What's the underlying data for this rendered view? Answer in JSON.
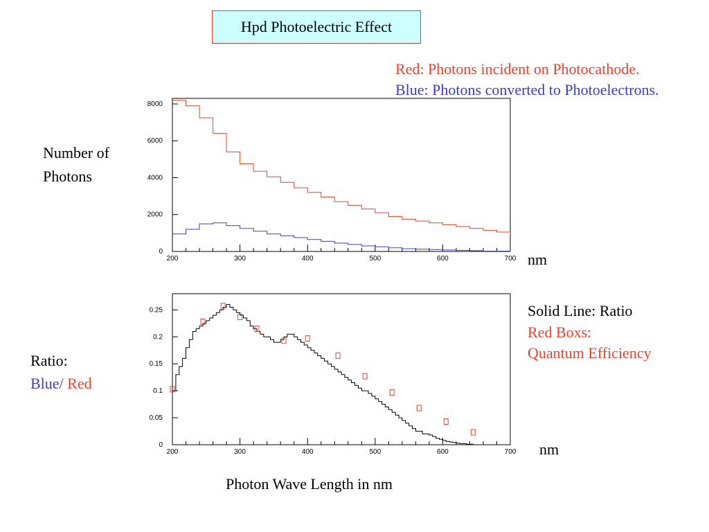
{
  "title": "Hpd Photoelectric Effect",
  "legend_top": {
    "red_line": "Red: Photons incident on Photocathode.",
    "blue_line": "Blue: Photons converted to Photoelectrons."
  },
  "ylabel_top": [
    "Number of",
    "Photons"
  ],
  "xunit_top": "nm",
  "ylabel_bottom": {
    "line1": "Ratio:",
    "blue": "Blue/",
    "red": "Red"
  },
  "xunit_bottom": "nm",
  "legend_bottom": {
    "line1": "Solid Line: Ratio",
    "line2": "Red Boxs:",
    "line3": "Quantum Efficiency"
  },
  "xlabel": "Photon Wave Length in nm",
  "colors": {
    "red": "#e8412a",
    "blue": "#3b3bcc",
    "black": "#000000",
    "title_bg": "#ccffff"
  },
  "chart_data": [
    {
      "type": "line",
      "step": true,
      "xlim": [
        200,
        700
      ],
      "ylim": [
        0,
        8300
      ],
      "xticks": [
        200,
        300,
        400,
        500,
        600,
        700
      ],
      "yticks": [
        0,
        2000,
        4000,
        6000,
        8000
      ],
      "series": [
        {
          "color": "red",
          "x": [
            200,
            220,
            240,
            260,
            280,
            300,
            320,
            340,
            360,
            380,
            400,
            420,
            440,
            460,
            480,
            500,
            520,
            540,
            560,
            580,
            600,
            620,
            640,
            660,
            680,
            700
          ],
          "y": [
            8200,
            7900,
            7250,
            6400,
            5400,
            4750,
            4350,
            4050,
            3750,
            3450,
            3200,
            2950,
            2700,
            2500,
            2300,
            2100,
            1900,
            1750,
            1650,
            1550,
            1450,
            1350,
            1250,
            1150,
            1050,
            950
          ]
        },
        {
          "color": "blue",
          "x": [
            200,
            220,
            240,
            260,
            280,
            300,
            320,
            340,
            360,
            380,
            400,
            420,
            440,
            460,
            480,
            500,
            520,
            540,
            560,
            580,
            600,
            620,
            640,
            660
          ],
          "y": [
            950,
            1200,
            1500,
            1550,
            1400,
            1250,
            1100,
            950,
            850,
            750,
            650,
            550,
            450,
            380,
            300,
            250,
            200,
            150,
            120,
            100,
            80,
            60,
            40,
            20
          ]
        }
      ]
    },
    {
      "type": "line",
      "step": true,
      "xlim": [
        200,
        700
      ],
      "ylim": [
        0,
        0.28
      ],
      "xticks": [
        200,
        300,
        400,
        500,
        600,
        700
      ],
      "yticks": [
        0,
        0.05,
        0.1,
        0.15,
        0.2,
        0.25
      ],
      "series": [
        {
          "color": "black",
          "x": [
            200,
            205,
            210,
            215,
            220,
            225,
            230,
            235,
            240,
            245,
            250,
            255,
            260,
            265,
            270,
            275,
            280,
            285,
            290,
            295,
            300,
            305,
            310,
            315,
            320,
            325,
            330,
            335,
            340,
            345,
            350,
            355,
            360,
            365,
            370,
            375,
            380,
            385,
            390,
            395,
            400,
            405,
            410,
            415,
            420,
            425,
            430,
            435,
            440,
            445,
            450,
            455,
            460,
            465,
            470,
            475,
            480,
            485,
            490,
            495,
            500,
            505,
            510,
            515,
            520,
            525,
            530,
            535,
            540,
            545,
            550,
            555,
            560,
            565,
            570,
            575,
            580,
            585,
            590,
            595,
            600,
            605,
            610,
            615,
            620,
            625,
            630,
            635,
            640,
            645,
            650,
            655,
            660,
            665,
            670,
            675,
            680,
            685,
            690,
            695
          ],
          "y": [
            0.1,
            0.13,
            0.145,
            0.16,
            0.18,
            0.195,
            0.21,
            0.215,
            0.22,
            0.225,
            0.23,
            0.235,
            0.24,
            0.245,
            0.25,
            0.255,
            0.26,
            0.255,
            0.25,
            0.245,
            0.24,
            0.235,
            0.23,
            0.22,
            0.215,
            0.21,
            0.205,
            0.2,
            0.2,
            0.195,
            0.19,
            0.19,
            0.195,
            0.2,
            0.205,
            0.205,
            0.2,
            0.195,
            0.19,
            0.185,
            0.18,
            0.175,
            0.17,
            0.165,
            0.16,
            0.155,
            0.15,
            0.145,
            0.14,
            0.135,
            0.13,
            0.125,
            0.12,
            0.115,
            0.11,
            0.105,
            0.1,
            0.1,
            0.095,
            0.09,
            0.085,
            0.08,
            0.075,
            0.07,
            0.065,
            0.06,
            0.055,
            0.05,
            0.045,
            0.04,
            0.035,
            0.03,
            0.025,
            0.025,
            0.02,
            0.02,
            0.018,
            0.015,
            0.012,
            0.01,
            0.008,
            0.006,
            0.005,
            0.004,
            0.003,
            0.002,
            0.002,
            0.001,
            0.001,
            0.0,
            0.0,
            0.0,
            0.0,
            0.0,
            0.0,
            0.0,
            0.0,
            0.0,
            0.0,
            0.0
          ]
        },
        {
          "color": "red",
          "marker": "box",
          "x": [
            200,
            245,
            275,
            300,
            325,
            365,
            400,
            445,
            485,
            525,
            565,
            605,
            645
          ],
          "y": [
            0.103,
            0.228,
            0.257,
            0.237,
            0.215,
            0.193,
            0.197,
            0.165,
            0.127,
            0.097,
            0.068,
            0.043,
            0.023
          ]
        }
      ]
    }
  ]
}
